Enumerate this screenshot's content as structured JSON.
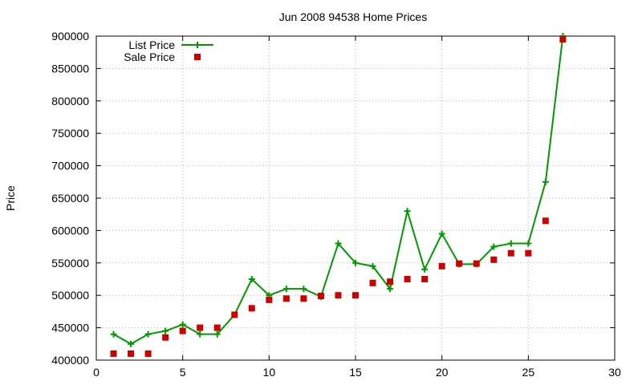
{
  "chart_data": {
    "type": "line",
    "title": "Jun 2008 94538 Home Prices",
    "xlabel": "",
    "ylabel": "Price",
    "xlim": [
      0,
      30
    ],
    "ylim": [
      400000,
      900000
    ],
    "x_ticks": [
      0,
      5,
      10,
      15,
      20,
      25,
      30
    ],
    "y_ticks": [
      400000,
      450000,
      500000,
      550000,
      600000,
      650000,
      700000,
      750000,
      800000,
      850000,
      900000
    ],
    "grid": true,
    "legend_position": "top-left",
    "series": [
      {
        "name": "List Price",
        "style": "line-with-plus-markers",
        "color": "#009900",
        "x": [
          1,
          2,
          3,
          4,
          5,
          6,
          7,
          8,
          9,
          10,
          11,
          12,
          13,
          14,
          15,
          16,
          17,
          18,
          19,
          20,
          21,
          22,
          23,
          24,
          25,
          26,
          27
        ],
        "y": [
          440000,
          425000,
          440000,
          445000,
          455000,
          440000,
          440000,
          470000,
          525000,
          500000,
          510000,
          510000,
          498000,
          580000,
          550000,
          545000,
          510000,
          630000,
          540000,
          595000,
          548000,
          548000,
          575000,
          580000,
          580000,
          675000,
          900000
        ]
      },
      {
        "name": "Sale Price",
        "style": "square-markers",
        "color": "#cc0000",
        "x": [
          1,
          2,
          3,
          4,
          5,
          6,
          7,
          8,
          9,
          10,
          11,
          12,
          13,
          14,
          15,
          16,
          17,
          18,
          19,
          20,
          21,
          22,
          23,
          24,
          25,
          26,
          27
        ],
        "y": [
          410000,
          410000,
          410000,
          435000,
          445000,
          450000,
          450000,
          470000,
          480000,
          493000,
          495000,
          495000,
          499000,
          500000,
          500000,
          519000,
          521000,
          525000,
          525000,
          545000,
          549000,
          549000,
          555000,
          565000,
          565000,
          615000,
          895000
        ]
      }
    ]
  }
}
